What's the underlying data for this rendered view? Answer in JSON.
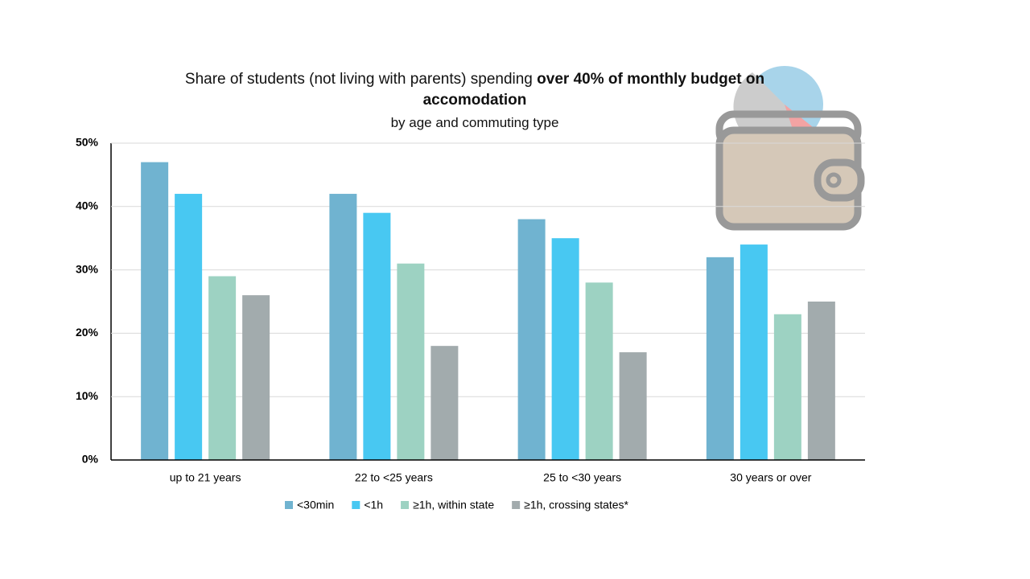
{
  "chart_data": {
    "type": "bar",
    "title": "Share of students (not living with parents) spending",
    "title_emphasis": "over 40% of monthly budget on accomodation",
    "subtitle": "by age and commuting type",
    "categories": [
      "up to 21 years",
      "22 to <25 years",
      "25 to <30 years",
      "30 years or over"
    ],
    "series": [
      {
        "name": "<30min",
        "color": "#70b3d0",
        "values": [
          47,
          42,
          38,
          32
        ]
      },
      {
        "name": "<1h",
        "color": "#48c8f2",
        "values": [
          42,
          39,
          35,
          34
        ]
      },
      {
        "name": "≥1h, within state",
        "color": "#9dd2c2",
        "values": [
          29,
          31,
          28,
          23
        ]
      },
      {
        "name": "≥1h, crossing states*",
        "color": "#a2abad",
        "values": [
          26,
          18,
          17,
          25
        ]
      }
    ],
    "ylim": [
      0,
      50
    ],
    "yticks": [
      {
        "value": 0,
        "label": "0%"
      },
      {
        "value": 10,
        "label": "10%"
      },
      {
        "value": 20,
        "label": "20%"
      },
      {
        "value": 30,
        "label": "30%"
      },
      {
        "value": 40,
        "label": "40%"
      },
      {
        "value": 50,
        "label": "50%"
      }
    ],
    "grid": true
  }
}
